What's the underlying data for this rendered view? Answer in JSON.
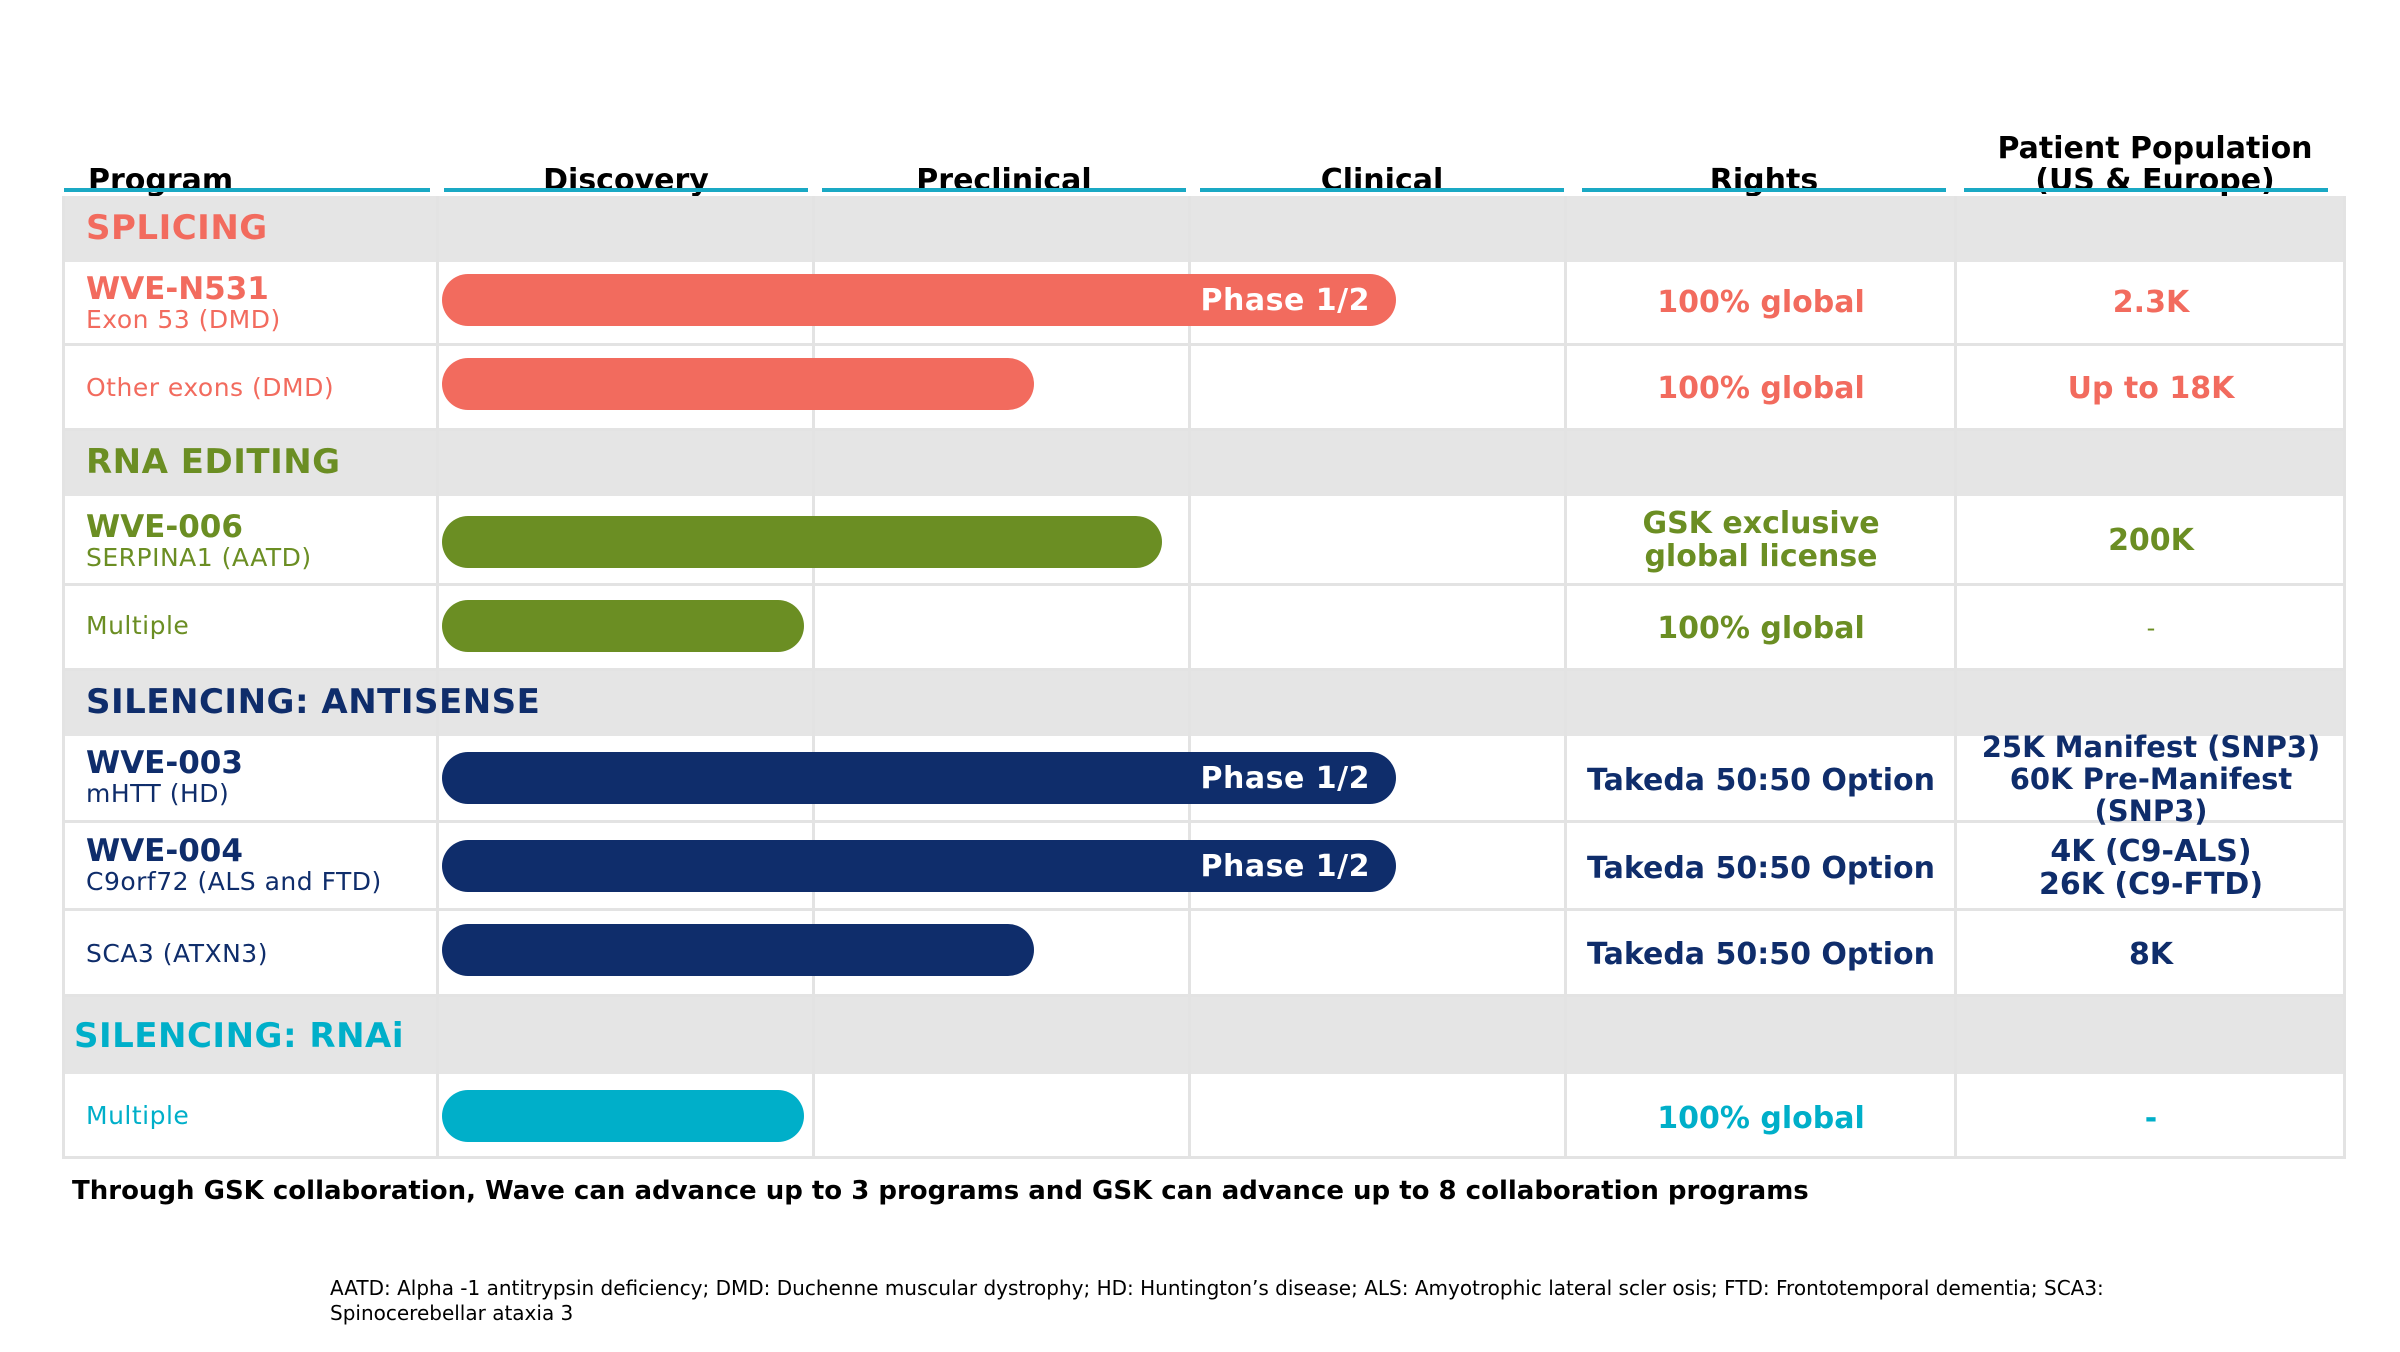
{
  "colors": {
    "splicing": "#f26b5e",
    "rna_editing": "#6b8e23",
    "antisense": "#0f2d6b",
    "rnai": "#00afc9",
    "header_rule": "#1aa9c4"
  },
  "headers": {
    "program": "Program",
    "discovery": "Discovery",
    "preclinical": "Preclinical",
    "clinical": "Clinical",
    "rights": "Rights",
    "patient_line1": "Patient Population",
    "patient_line2": "(US & Europe)"
  },
  "sections": {
    "splicing": "SPLICING",
    "rna_editing": "RNA EDITING",
    "antisense": "SILENCING: ANTISENSE",
    "rnai": "SILENCING: RNAi"
  },
  "rows": [
    {
      "name": "WVE-N531",
      "sub": "Exon 53 (DMD)",
      "bar_label": "Phase 1/2",
      "rights": "100% global",
      "pop": "2.3K"
    },
    {
      "name": "",
      "sub": "Other exons (DMD)",
      "bar_label": "",
      "rights": "100% global",
      "pop": "Up to 18K"
    },
    {
      "name": "WVE-006",
      "sub": "SERPINA1 (AATD)",
      "bar_label": "",
      "rights_line1": "GSK exclusive",
      "rights_line2": "global license",
      "pop": "200K"
    },
    {
      "name": "",
      "sub": "Multiple",
      "bar_label": "",
      "rights": "100% global",
      "pop": "-"
    },
    {
      "name": "WVE-003",
      "sub": "mHTT (HD)",
      "bar_label": "Phase 1/2",
      "rights": "Takeda 50:50 Option",
      "pop_line1": "25K Manifest (SNP3)",
      "pop_line2": "60K Pre-Manifest (SNP3)"
    },
    {
      "name": "WVE-004",
      "sub": "C9orf72 (ALS and FTD)",
      "bar_label": "Phase 1/2",
      "rights": "Takeda 50:50 Option",
      "pop_line1": "4K (C9-ALS)",
      "pop_line2": "26K (C9-FTD)"
    },
    {
      "name": "",
      "sub": "SCA3 (ATXN3)",
      "bar_label": "",
      "rights": "Takeda 50:50 Option",
      "pop": "8K"
    },
    {
      "name": "",
      "sub": "Multiple",
      "bar_label": "",
      "rights": "100% global",
      "pop": "-"
    }
  ],
  "footnotes": {
    "collaboration": "Through GSK collaboration, Wave can advance up to 3 programs and GSK can advance up to 8 collaboration programs",
    "abbreviations": "AATD: Alpha -1 antitrypsin deficiency; DMD: Duchenne muscular dystrophy; HD: Huntington’s disease; ALS: Amyotrophic lateral scler osis; FTD: Frontotemporal dementia; SCA3: Spinocerebellar ataxia 3"
  }
}
